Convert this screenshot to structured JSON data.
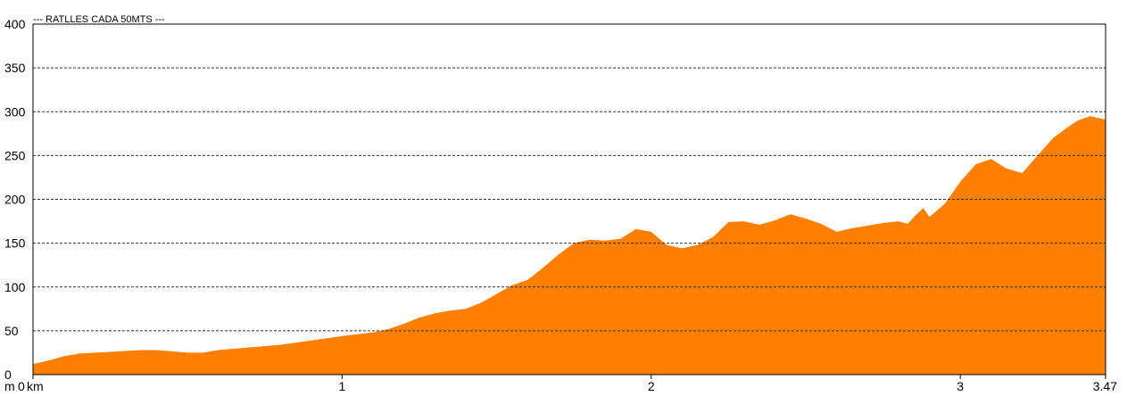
{
  "chart_data": {
    "type": "area",
    "title": "--- RATLLES CADA 50MTS ---",
    "xlabel": "",
    "ylabel": "",
    "y_unit_label": "m",
    "x_unit_label": "km",
    "xlim": [
      0,
      3.47
    ],
    "ylim": [
      0,
      400
    ],
    "grid": true,
    "legend": "none",
    "fill_color": "#ff8000",
    "grid_color": "#333333",
    "y_ticks": [
      0,
      50,
      100,
      150,
      200,
      250,
      300,
      350,
      400
    ],
    "x_ticks": [
      {
        "value": 0,
        "label": "0"
      },
      {
        "value": 1,
        "label": "1"
      },
      {
        "value": 2,
        "label": "2"
      },
      {
        "value": 3,
        "label": "3"
      },
      {
        "value": 3.47,
        "label": "3.47"
      }
    ],
    "series": [
      {
        "x": [
          0,
          0.05,
          0.1,
          0.15,
          0.2,
          0.3,
          0.35,
          0.4,
          0.5,
          0.55,
          0.6,
          0.7,
          0.8,
          0.9,
          1.0,
          1.1,
          1.15,
          1.2,
          1.25,
          1.3,
          1.35,
          1.4,
          1.45,
          1.5,
          1.55,
          1.6,
          1.65,
          1.7,
          1.75,
          1.8,
          1.85,
          1.9,
          1.95,
          2.0,
          2.05,
          2.1,
          2.15,
          2.2,
          2.25,
          2.3,
          2.35,
          2.4,
          2.45,
          2.5,
          2.55,
          2.6,
          2.65,
          2.7,
          2.75,
          2.8,
          2.83,
          2.85,
          2.88,
          2.9,
          2.95,
          3.0,
          3.05,
          3.1,
          3.15,
          3.2,
          3.25,
          3.3,
          3.35,
          3.38,
          3.42,
          3.47
        ],
        "y": [
          12,
          16,
          21,
          24,
          25,
          27,
          28,
          28,
          25,
          25,
          28,
          31,
          34,
          39,
          44,
          48,
          52,
          58,
          65,
          70,
          73,
          75,
          82,
          92,
          102,
          108,
          122,
          137,
          150,
          154,
          153,
          155,
          166,
          163,
          148,
          144,
          148,
          157,
          174,
          175,
          171,
          176,
          183,
          178,
          172,
          163,
          167,
          170,
          173,
          175,
          172,
          180,
          190,
          180,
          195,
          220,
          240,
          246,
          235,
          230,
          250,
          270,
          283,
          290,
          295,
          291
        ]
      }
    ]
  }
}
